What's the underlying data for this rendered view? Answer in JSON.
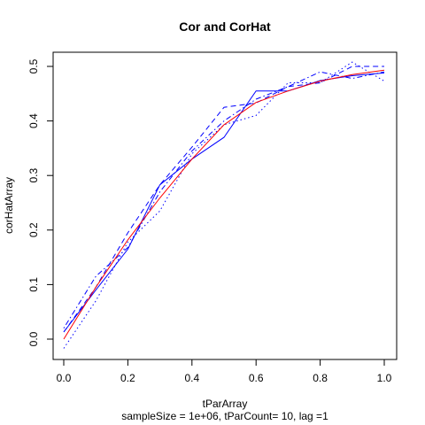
{
  "chart_data": {
    "type": "line",
    "title": "Cor and CorHat",
    "xlabel": "tParArray",
    "ylabel": "corHatArray",
    "subtitle": "sampleSize = 1e+06, tParCount= 10, lag =1",
    "xlim": [
      0,
      1
    ],
    "ylim": [
      -0.015,
      0.51
    ],
    "x_ticks": [
      "0.0",
      "0.2",
      "0.4",
      "0.6",
      "0.8",
      "1.0"
    ],
    "y_ticks": [
      "0.0",
      "0.1",
      "0.2",
      "0.3",
      "0.4",
      "0.5"
    ],
    "grid": false,
    "x": [
      0,
      0.1,
      0.2,
      0.3,
      0.4,
      0.5,
      0.6,
      0.7,
      0.8,
      0.9,
      1.0
    ],
    "series": [
      {
        "color": "#ff0000",
        "dash": "solid",
        "values": [
          0.0,
          0.095,
          0.182,
          0.259,
          0.33,
          0.393,
          0.434,
          0.455,
          0.473,
          0.485,
          0.493
        ]
      },
      {
        "color": "#0000ff",
        "dash": "solid",
        "values": [
          0.013,
          0.09,
          0.165,
          0.283,
          0.33,
          0.37,
          0.455,
          0.455,
          0.474,
          0.483,
          0.488
        ]
      },
      {
        "color": "#0000ff",
        "dash": "dash",
        "values": [
          0.013,
          0.095,
          0.195,
          0.283,
          0.352,
          0.425,
          0.433,
          0.463,
          0.47,
          0.5,
          0.5
        ]
      },
      {
        "color": "#0000ff",
        "dash": "dot",
        "values": [
          -0.017,
          0.07,
          0.178,
          0.235,
          0.34,
          0.393,
          0.41,
          0.47,
          0.47,
          0.508,
          0.473
        ]
      },
      {
        "color": "#0000ff",
        "dash": "dotdash",
        "values": [
          0.02,
          0.115,
          0.168,
          0.27,
          0.345,
          0.4,
          0.44,
          0.463,
          0.49,
          0.478,
          0.49
        ]
      }
    ]
  }
}
